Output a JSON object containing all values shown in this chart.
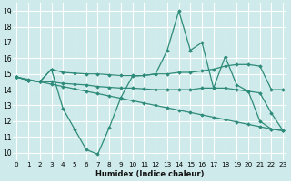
{
  "xlabel": "Humidex (Indice chaleur)",
  "xlim": [
    -0.3,
    23.3
  ],
  "ylim": [
    9.5,
    19.5
  ],
  "yticks": [
    10,
    11,
    12,
    13,
    14,
    15,
    16,
    17,
    18,
    19
  ],
  "xticks": [
    0,
    1,
    2,
    3,
    4,
    5,
    6,
    7,
    8,
    9,
    10,
    11,
    12,
    13,
    14,
    15,
    16,
    17,
    18,
    19,
    20,
    21,
    22,
    23
  ],
  "background_color": "#ceeaea",
  "grid_color": "#ffffff",
  "line_color": "#2e8b7a",
  "series1_x": [
    0,
    1,
    2,
    3,
    4,
    5,
    6,
    7,
    8,
    9,
    10,
    11,
    12,
    13,
    14,
    15,
    16,
    17,
    18,
    19,
    20,
    21,
    22,
    23
  ],
  "series1_y": [
    14.8,
    14.6,
    14.5,
    15.3,
    12.8,
    11.5,
    10.2,
    9.9,
    11.6,
    13.5,
    14.85,
    14.9,
    15.0,
    16.5,
    19.0,
    16.5,
    17.0,
    14.1,
    16.1,
    14.3,
    13.9,
    12.0,
    11.5,
    11.4
  ],
  "series2_x": [
    0,
    1,
    2,
    3,
    4,
    5,
    6,
    7,
    8,
    9,
    10,
    11,
    12,
    13,
    14,
    15,
    16,
    17,
    18,
    19,
    20,
    21,
    22,
    23
  ],
  "series2_y": [
    14.8,
    14.6,
    14.5,
    15.3,
    15.1,
    15.05,
    15.0,
    15.0,
    14.95,
    14.9,
    14.9,
    14.9,
    15.0,
    15.0,
    15.1,
    15.1,
    15.2,
    15.3,
    15.5,
    15.6,
    15.6,
    15.5,
    14.0,
    14.0
  ],
  "series3_x": [
    0,
    1,
    2,
    3,
    4,
    5,
    6,
    7,
    8,
    9,
    10,
    11,
    12,
    13,
    14,
    15,
    16,
    17,
    18,
    19,
    20,
    21,
    22,
    23
  ],
  "series3_y": [
    14.8,
    14.6,
    14.5,
    14.5,
    14.4,
    14.35,
    14.3,
    14.2,
    14.15,
    14.1,
    14.1,
    14.05,
    14.0,
    14.0,
    14.0,
    14.0,
    14.1,
    14.1,
    14.1,
    14.0,
    13.9,
    13.8,
    12.5,
    11.4
  ],
  "series4_x": [
    0,
    1,
    2,
    3,
    4,
    5,
    6,
    7,
    8,
    9,
    10,
    11,
    12,
    13,
    14,
    15,
    16,
    17,
    18,
    19,
    20,
    21,
    22,
    23
  ],
  "series4_y": [
    14.8,
    14.65,
    14.5,
    14.35,
    14.2,
    14.05,
    13.9,
    13.75,
    13.6,
    13.45,
    13.3,
    13.15,
    13.0,
    12.85,
    12.7,
    12.55,
    12.4,
    12.25,
    12.1,
    11.95,
    11.8,
    11.65,
    11.5,
    11.4
  ]
}
